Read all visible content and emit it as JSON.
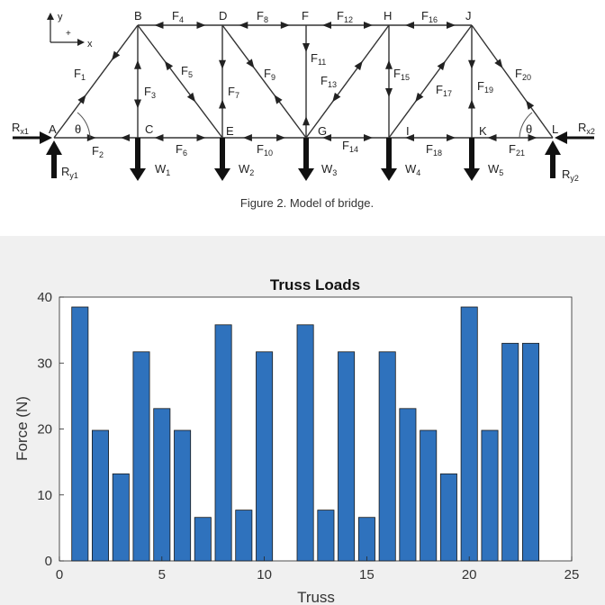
{
  "figure": {
    "caption": "Figure 2.  Model of bridge.",
    "axes": {
      "y": "y",
      "x": "x",
      "plus": "+"
    },
    "nodes": {
      "A": "A",
      "B": "B",
      "C": "C",
      "D": "D",
      "E": "E",
      "F": "F",
      "G": "G",
      "H": "H",
      "I": "I",
      "J": "J",
      "K": "K",
      "L": "L"
    },
    "members": [
      {
        "id": "F1",
        "main": "F",
        "sub": "1"
      },
      {
        "id": "F2",
        "main": "F",
        "sub": "2"
      },
      {
        "id": "F3",
        "main": "F",
        "sub": "3"
      },
      {
        "id": "F4",
        "main": "F",
        "sub": "4"
      },
      {
        "id": "F5",
        "main": "F",
        "sub": "5"
      },
      {
        "id": "F6",
        "main": "F",
        "sub": "6"
      },
      {
        "id": "F7",
        "main": "F",
        "sub": "7"
      },
      {
        "id": "F8",
        "main": "F",
        "sub": "8"
      },
      {
        "id": "F9",
        "main": "F",
        "sub": "9"
      },
      {
        "id": "F10",
        "main": "F",
        "sub": "10"
      },
      {
        "id": "F11",
        "main": "F",
        "sub": "11"
      },
      {
        "id": "F12",
        "main": "F",
        "sub": "12"
      },
      {
        "id": "F13",
        "main": "F",
        "sub": "13"
      },
      {
        "id": "F14",
        "main": "F",
        "sub": "14"
      },
      {
        "id": "F15",
        "main": "F",
        "sub": "15"
      },
      {
        "id": "F16",
        "main": "F",
        "sub": "16"
      },
      {
        "id": "F17",
        "main": "F",
        "sub": "17"
      },
      {
        "id": "F18",
        "main": "F",
        "sub": "18"
      },
      {
        "id": "F19",
        "main": "F",
        "sub": "19"
      },
      {
        "id": "F20",
        "main": "F",
        "sub": "20"
      },
      {
        "id": "F21",
        "main": "F",
        "sub": "21"
      }
    ],
    "loads": [
      {
        "main": "W",
        "sub": "1"
      },
      {
        "main": "W",
        "sub": "2"
      },
      {
        "main": "W",
        "sub": "3"
      },
      {
        "main": "W",
        "sub": "4"
      },
      {
        "main": "W",
        "sub": "5"
      }
    ],
    "reactions": [
      {
        "id": "Rx1",
        "main": "R",
        "sub": "x1"
      },
      {
        "id": "Ry1",
        "main": "R",
        "sub": "y1"
      },
      {
        "id": "Rx2",
        "main": "R",
        "sub": "x2"
      },
      {
        "id": "Ry2",
        "main": "R",
        "sub": "y2"
      }
    ],
    "angles": [
      "θ",
      "θ"
    ]
  },
  "chart_data": {
    "type": "bar",
    "title": "Truss Loads",
    "xlabel": "Truss",
    "ylabel": "Force (N)",
    "categories": [
      1,
      2,
      3,
      4,
      5,
      6,
      7,
      8,
      9,
      10,
      11,
      12,
      13,
      14,
      15,
      16,
      17,
      18,
      19,
      20,
      21,
      22,
      23
    ],
    "values": [
      38.5,
      19.8,
      13.2,
      31.7,
      23.1,
      19.8,
      6.6,
      35.8,
      7.7,
      31.7,
      0,
      35.8,
      7.7,
      31.7,
      6.6,
      31.7,
      23.1,
      19.8,
      13.2,
      38.5,
      19.8,
      33.0,
      33.0
    ],
    "xlim": [
      0,
      25
    ],
    "ylim": [
      0,
      40
    ],
    "xticks": [
      0,
      5,
      10,
      15,
      20,
      25
    ],
    "yticks": [
      0,
      10,
      20,
      30,
      40
    ],
    "bar_color": "#2f72bd",
    "grid": false
  }
}
